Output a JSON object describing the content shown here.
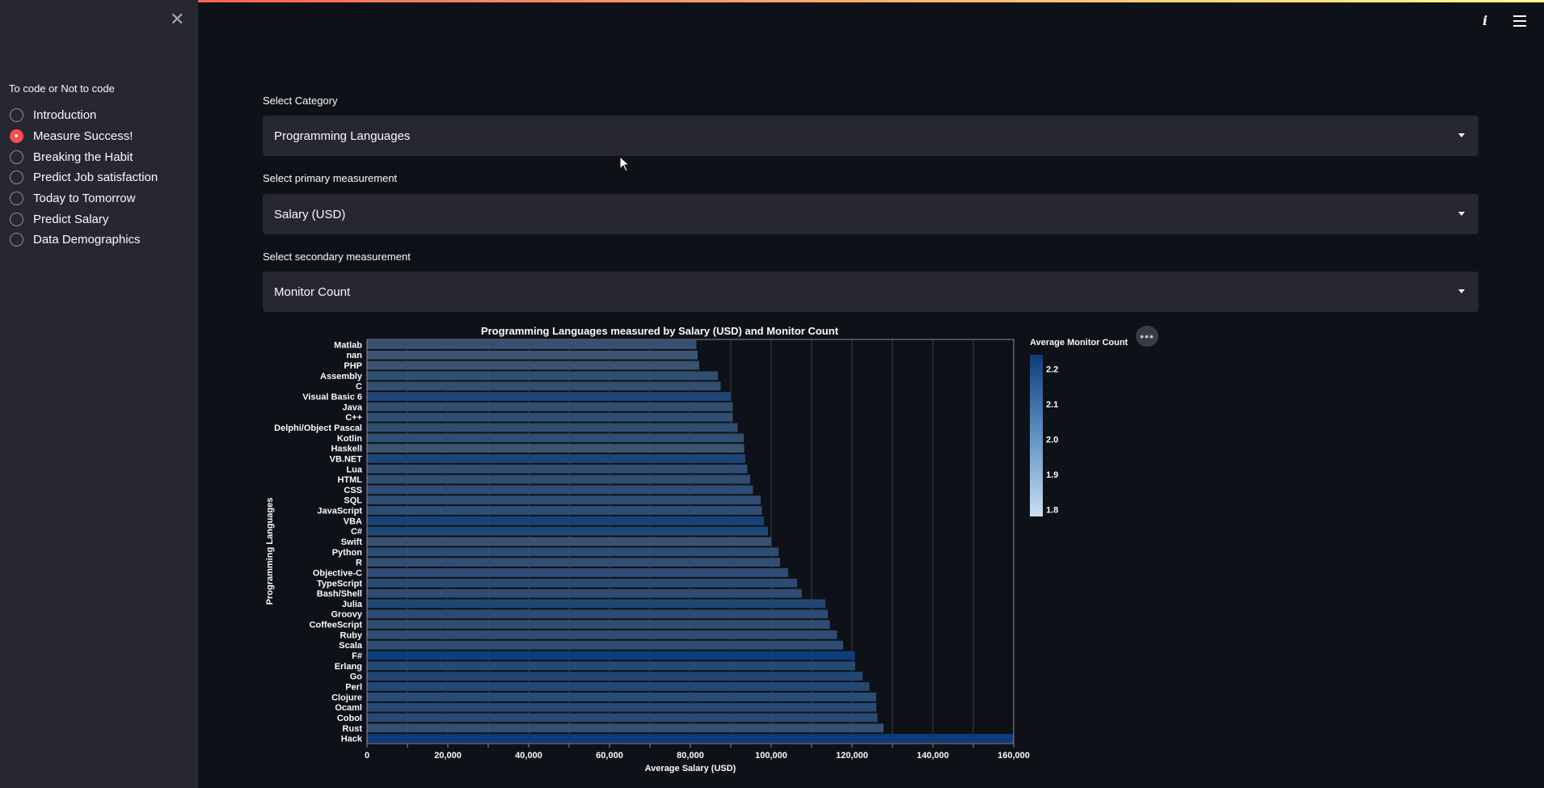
{
  "sidebar": {
    "close_icon": "close-icon",
    "title": "To code or Not to code",
    "items": [
      {
        "label": "Introduction",
        "selected": false
      },
      {
        "label": "Measure Success!",
        "selected": true
      },
      {
        "label": "Breaking the Habit",
        "selected": false
      },
      {
        "label": "Predict Job satisfaction",
        "selected": false
      },
      {
        "label": "Today to Tomorrow",
        "selected": false
      },
      {
        "label": "Predict Salary",
        "selected": false
      },
      {
        "label": "Data Demographics",
        "selected": false
      }
    ]
  },
  "header": {
    "icons": [
      "info-icon",
      "hamburger-menu-icon"
    ],
    "accent_gradient": [
      "#ff4b4b",
      "#fffd80"
    ]
  },
  "form": {
    "category_label": "Select Category",
    "category_value": "Programming Languages",
    "primary_label": "Select primary measurement",
    "primary_value": "Salary (USD)",
    "secondary_label": "Select secondary measurement",
    "secondary_value": "Monitor Count"
  },
  "colors": {
    "background": "#0e1117",
    "sidebar": "#262730",
    "accent": "#ff4b4b",
    "bar_low": "#4a5a6d",
    "bar_high": "#0c3d7a"
  },
  "chart_data": {
    "type": "bar",
    "orientation": "horizontal",
    "title": "Programming Languages measured by Salary (USD) and Monitor Count",
    "xlabel": "Average Salary (USD)",
    "ylabel": "Programming Languages",
    "xlim": [
      0,
      160000
    ],
    "xticks": [
      "0",
      "20,000",
      "40,000",
      "60,000",
      "80,000",
      "100,000",
      "120,000",
      "140,000",
      "160,000"
    ],
    "grid": true,
    "legend": {
      "title": "Average Monitor Count",
      "position": "right",
      "ticks": [
        "2.2",
        "2.1",
        "2.0",
        "1.9",
        "1.8"
      ],
      "range": [
        1.78,
        2.24
      ]
    },
    "categories": [
      "Matlab",
      "nan",
      "PHP",
      "Assembly",
      "C",
      "Visual Basic 6",
      "Java",
      "C++",
      "Delphi/Object Pascal",
      "Kotlin",
      "Haskell",
      "VB.NET",
      "Lua",
      "HTML",
      "CSS",
      "SQL",
      "JavaScript",
      "VBA",
      "C#",
      "Swift",
      "Python",
      "R",
      "Objective-C",
      "TypeScript",
      "Bash/Shell",
      "Julia",
      "Groovy",
      "CoffeeScript",
      "Ruby",
      "Scala",
      "F#",
      "Erlang",
      "Go",
      "Perl",
      "Clojure",
      "Ocaml",
      "Cobol",
      "Rust",
      "Hack"
    ],
    "values": [
      81500,
      81800,
      82200,
      86800,
      87500,
      90000,
      90500,
      90500,
      91700,
      93200,
      93300,
      93600,
      94100,
      94800,
      95500,
      97400,
      97700,
      98200,
      99200,
      100100,
      101800,
      102200,
      104200,
      106400,
      107600,
      113400,
      114000,
      114500,
      116300,
      117800,
      120700,
      120800,
      122600,
      124300,
      126000,
      126000,
      126300,
      127800,
      160000
    ],
    "monitor_count": [
      1.92,
      1.86,
      1.9,
      1.96,
      1.96,
      2.1,
      1.97,
      1.97,
      1.97,
      1.97,
      1.88,
      2.12,
      1.98,
      1.97,
      1.98,
      1.97,
      1.98,
      2.14,
      2.1,
      1.9,
      1.98,
      1.96,
      1.98,
      2.02,
      1.99,
      2.08,
      2.02,
      1.98,
      1.98,
      1.98,
      2.23,
      2.05,
      2.08,
      2.07,
      2.02,
      2.04,
      2.03,
      1.94,
      2.24
    ]
  }
}
